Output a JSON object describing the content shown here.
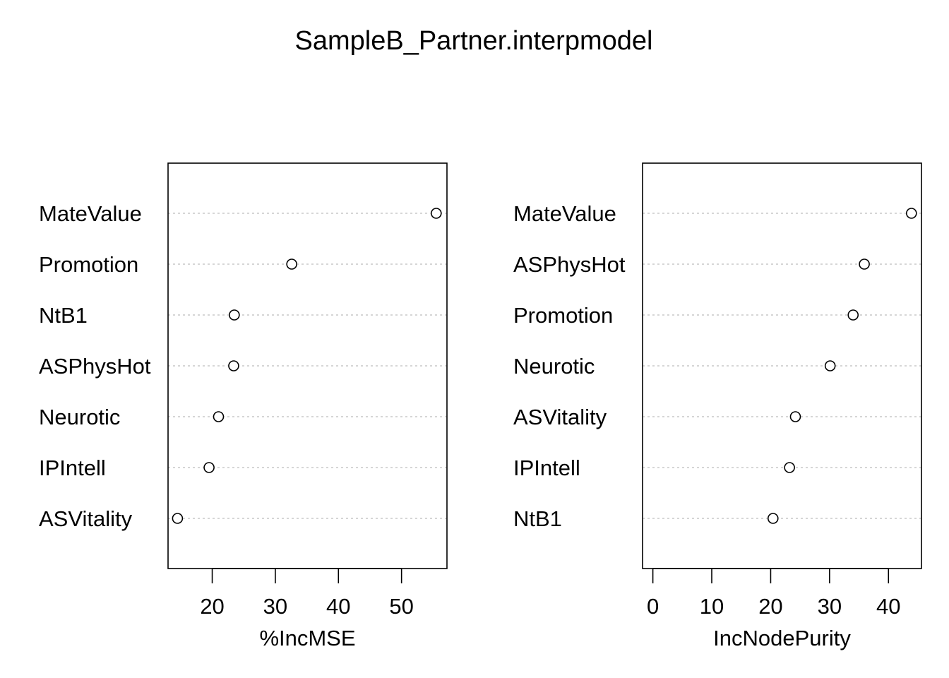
{
  "title": "SampleB_Partner.interpmodel",
  "chart_data": [
    {
      "type": "scatter",
      "variant": "dotchart",
      "xlabel": "%IncMSE",
      "ylabel": "",
      "categories": [
        "MateValue",
        "Promotion",
        "NtB1",
        "ASPhysHot",
        "Neurotic",
        "IPIntell",
        "ASVitality"
      ],
      "values": [
        55.5,
        32.6,
        23.5,
        23.4,
        21.0,
        19.5,
        14.5
      ],
      "xlim": [
        13.0,
        57.2
      ],
      "xticks": [
        20,
        30,
        40,
        50
      ],
      "grid": true
    },
    {
      "type": "scatter",
      "variant": "dotchart",
      "xlabel": "IncNodePurity",
      "ylabel": "",
      "categories": [
        "MateValue",
        "ASPhysHot",
        "Promotion",
        "Neurotic",
        "ASVitality",
        "IPIntell",
        "NtB1"
      ],
      "values": [
        43.9,
        35.9,
        34.0,
        30.1,
        24.2,
        23.2,
        20.4
      ],
      "xlim": [
        -1.75,
        45.6
      ],
      "xticks": [
        0,
        10,
        20,
        30,
        40
      ],
      "grid": true
    }
  ]
}
